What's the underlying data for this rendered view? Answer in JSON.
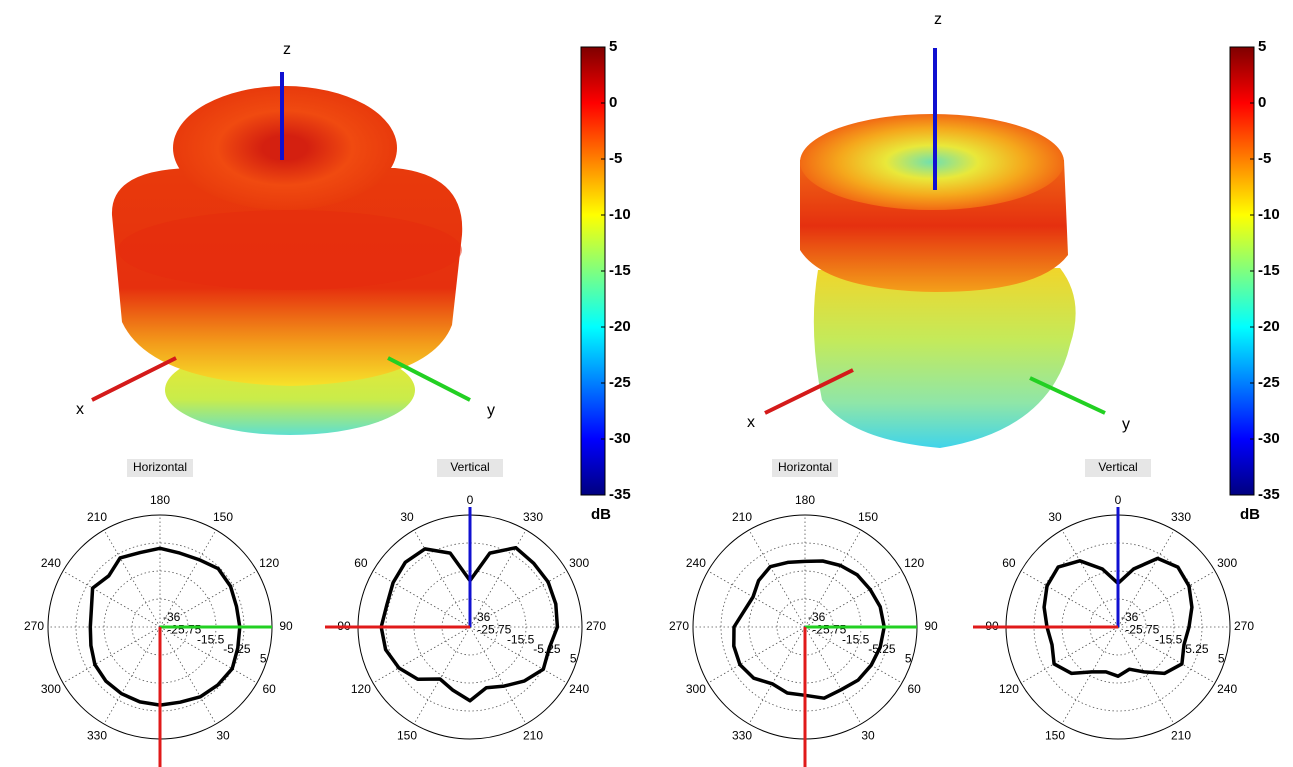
{
  "chart_data": [
    {
      "type": "surface3d",
      "axis_labels": {
        "x": "x",
        "y": "y",
        "z": "z"
      },
      "colormap": "jet",
      "clim": [
        -35,
        5
      ],
      "cticks": [
        5,
        0,
        -5,
        -10,
        -15,
        -20,
        -25,
        -30,
        -35
      ],
      "clabel": "dB"
    },
    {
      "type": "polar",
      "title": "Horizontal",
      "theta_zero": "S",
      "theta_direction": "counterclockwise",
      "thetaticks": [
        180,
        150,
        120,
        90,
        60,
        30,
        330,
        300,
        270,
        240,
        210
      ],
      "rlim": [
        -36,
        5
      ],
      "rticks": [
        -36,
        -25.75,
        -15.5,
        -5.25,
        5
      ],
      "color": "#000000",
      "theta": [
        0,
        15,
        30,
        45,
        60,
        75,
        90,
        105,
        120,
        135,
        150,
        165,
        180,
        195,
        210,
        225,
        240,
        255,
        270,
        285,
        300,
        315,
        330,
        345
      ],
      "r": [
        -7.4,
        -7.5,
        -6.5,
        -6,
        -5.5,
        -6.5,
        -6.8,
        -7,
        -6.2,
        -5.8,
        -7.5,
        -8,
        -7.2,
        -7.8,
        -6.8,
        -9.5,
        -7.5,
        -10,
        -10.5,
        -9.8,
        -8.5,
        -8,
        -7.8,
        -7.6
      ]
    },
    {
      "type": "polar",
      "title": "Vertical",
      "theta_zero": "N",
      "theta_direction": "counterclockwise",
      "thetaticks": [
        0,
        30,
        60,
        90,
        120,
        150,
        210,
        240,
        270,
        300,
        330
      ],
      "rlim": [
        -36,
        5
      ],
      "rticks": [
        -36,
        -25.75,
        -15.5,
        -5.25,
        5
      ],
      "color": "#000000",
      "theta": [
        0,
        15,
        30,
        45,
        60,
        75,
        90,
        105,
        120,
        135,
        150,
        165,
        180,
        195,
        210,
        225,
        240,
        255,
        270,
        285,
        300,
        315,
        330,
        345
      ],
      "r": [
        -19,
        -8,
        -3,
        -2.5,
        -3.5,
        -4.5,
        -3.5,
        -4,
        -6,
        -9,
        -14,
        -12,
        -9,
        -13,
        -11,
        -8,
        -5,
        -6,
        -4,
        -3.5,
        -3,
        -3,
        -2.5,
        -8
      ]
    },
    {
      "type": "surface3d",
      "axis_labels": {
        "x": "x",
        "y": "y",
        "z": "z"
      },
      "colormap": "jet",
      "clim": [
        -35,
        5
      ],
      "cticks": [
        5,
        0,
        -5,
        -10,
        -15,
        -20,
        -25,
        -30,
        -35
      ],
      "clabel": "dB"
    },
    {
      "type": "polar",
      "title": "Horizontal",
      "theta_zero": "S",
      "theta_direction": "counterclockwise",
      "thetaticks": [
        180,
        150,
        120,
        90,
        60,
        30,
        330,
        300,
        270,
        240,
        210
      ],
      "rlim": [
        -36,
        5
      ],
      "rticks": [
        -36,
        -25.75,
        -15.5,
        -5.25,
        5
      ],
      "color": "#000000",
      "theta": [
        0,
        15,
        30,
        45,
        60,
        75,
        90,
        105,
        120,
        135,
        150,
        165,
        180,
        195,
        210,
        225,
        240,
        255,
        270,
        285,
        300,
        315,
        330,
        345
      ],
      "r": [
        -11,
        -9,
        -9.5,
        -8.5,
        -8,
        -7.5,
        -7,
        -7.5,
        -8.5,
        -9,
        -10,
        -11,
        -12,
        -11.5,
        -10.5,
        -12,
        -14,
        -13,
        -10,
        -9,
        -8.5,
        -9.5,
        -12,
        -11
      ]
    },
    {
      "type": "polar",
      "title": "Vertical",
      "theta_zero": "N",
      "theta_direction": "counterclockwise",
      "thetaticks": [
        0,
        30,
        60,
        90,
        120,
        150,
        210,
        240,
        270,
        300,
        330
      ],
      "rlim": [
        -36,
        5
      ],
      "rticks": [
        -36,
        -25.75,
        -15.5,
        -5.25,
        5
      ],
      "color": "#000000",
      "theta": [
        0,
        15,
        30,
        45,
        60,
        75,
        90,
        105,
        120,
        135,
        150,
        165,
        180,
        195,
        210,
        225,
        240,
        255,
        270,
        285,
        300,
        315,
        330,
        345
      ],
      "r": [
        -20,
        -14,
        -8,
        -5,
        -6,
        -8,
        -10,
        -11,
        -9,
        -12,
        -17,
        -19,
        -18,
        -20,
        -17,
        -12,
        -9,
        -11,
        -10,
        -8,
        -6,
        -5,
        -7,
        -14
      ]
    }
  ]
}
